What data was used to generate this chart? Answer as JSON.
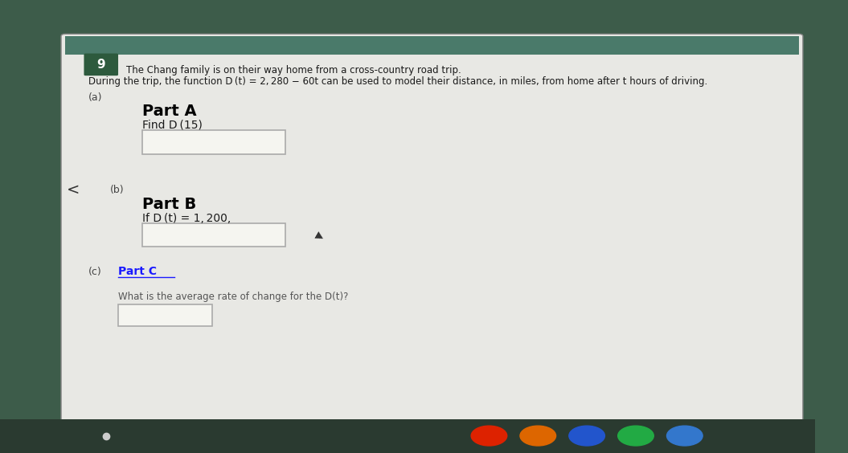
{
  "bg_outer": "#3d5c4a",
  "bg_screen": "#e8e8e4",
  "bg_top_bar": "#4a7a6a",
  "question_num": "9",
  "question_num_bg": "#2d5a3d",
  "question_num_color": "#ffffff",
  "line1": "The Chang family is on their way home from a cross-country road trip.",
  "line2": "During the trip, the function D (t) = 2, 280 − 60t can be used to model their distance, in miles, from home after t hours of driving.",
  "part_a_label": "(a)",
  "part_a_title": "Part A",
  "part_a_find": "Find D (15)",
  "part_b_label": "(b)",
  "part_b_title": "Part B",
  "part_b_if": "If D (t) = 1, 200,",
  "part_c_label": "(c)",
  "part_c_title": "Part C",
  "part_c_q": "What is the average rate of change for the D(t)?",
  "arrow_color": "#333333",
  "box_fill": "#f5f5f0",
  "box_edge": "#aaaaaa",
  "text_color": "#1a1a1a",
  "label_color": "#444444",
  "title_color": "#000000",
  "small_text_color": "#555555",
  "underline_color": "#1a1aff",
  "taskbar_color": "#2a3a30"
}
